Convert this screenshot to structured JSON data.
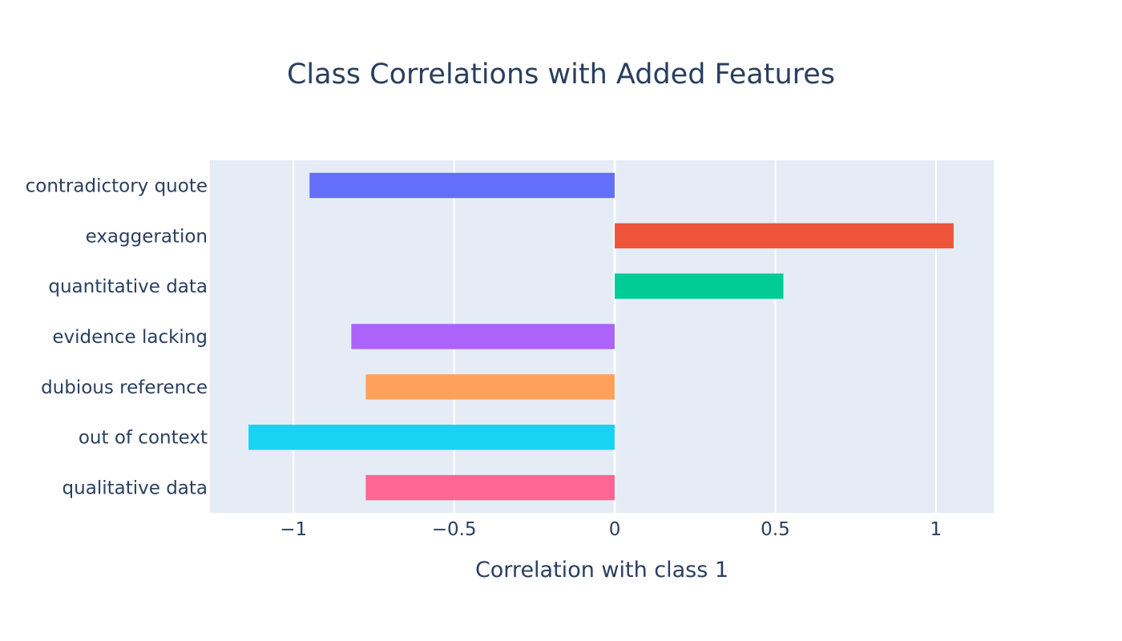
{
  "chart_data": {
    "type": "bar",
    "orientation": "horizontal",
    "title": "Class Correlations with Added Features",
    "xlabel": "Correlation with class 1",
    "ylabel": "",
    "xlim": [
      -1.26,
      1.18
    ],
    "x_ticks": [
      -1,
      -0.5,
      0,
      0.5,
      1
    ],
    "x_tick_labels": [
      "−1",
      "−0.5",
      "0",
      "0.5",
      "1"
    ],
    "grid": true,
    "legend": "none",
    "plot_background": "#e5ecf6",
    "gridline_color": "#ffffff",
    "text_color": "#2a3f5f",
    "categories": [
      "contradictory quote",
      "exaggeration",
      "quantitative data",
      "evidence lacking",
      "dubious reference",
      "out of context",
      "qualitative data"
    ],
    "values": [
      -0.95,
      1.055,
      0.525,
      -0.82,
      -0.775,
      -1.14,
      -0.775
    ],
    "colors": [
      "#636efa",
      "#ef553b",
      "#00cc96",
      "#ab63fa",
      "#ffa15a",
      "#19d3f3",
      "#ff6692"
    ]
  }
}
